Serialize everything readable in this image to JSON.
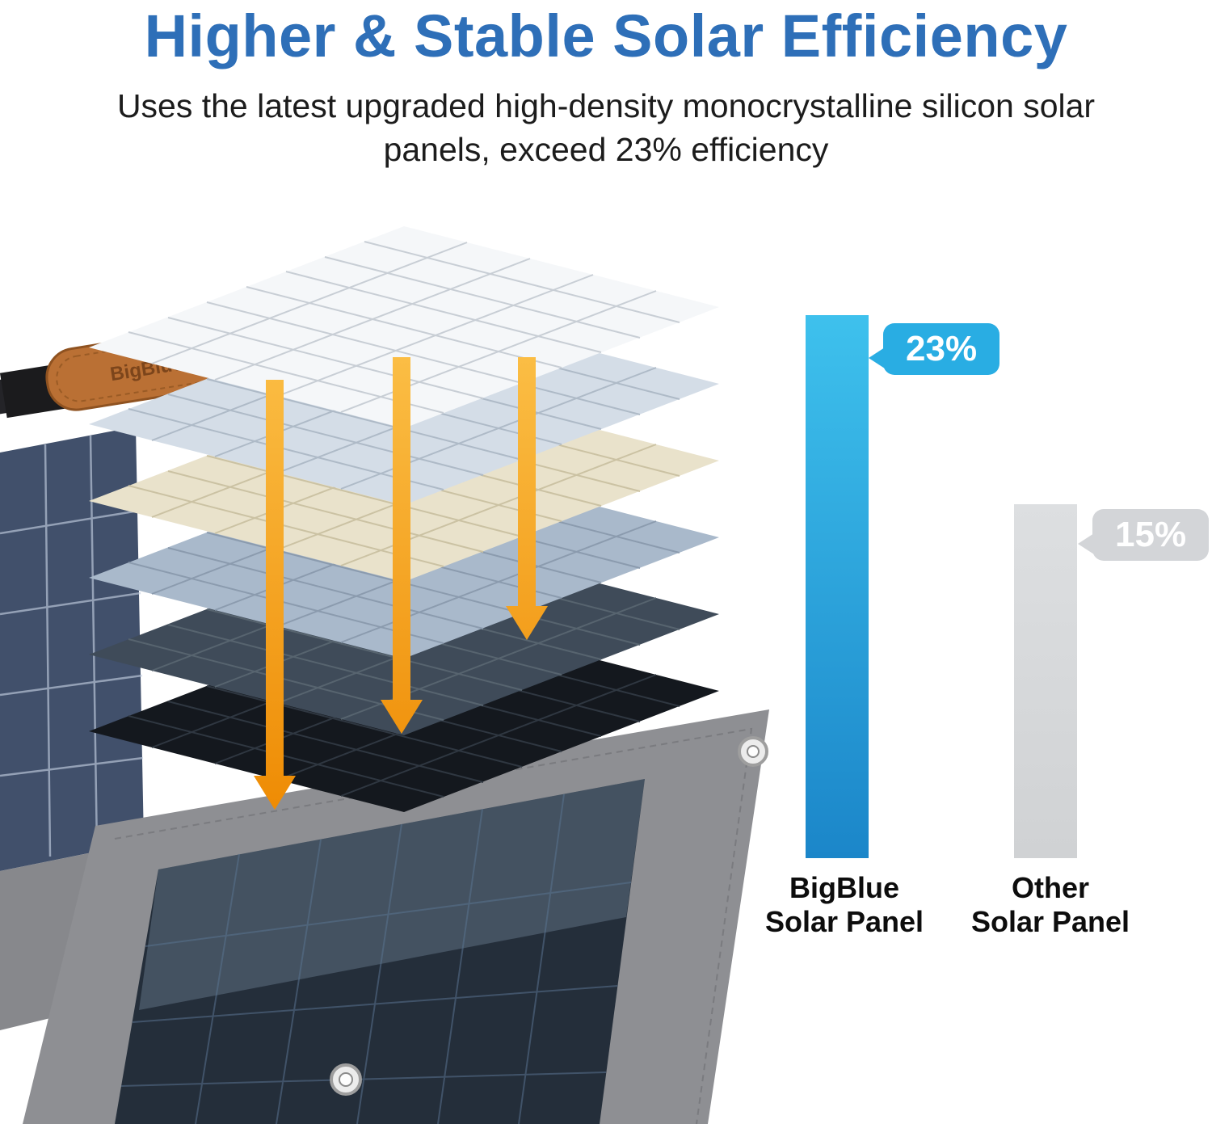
{
  "header": {
    "title": "Higher & Stable Solar Efficiency",
    "title_color": "#2E6FB8",
    "subtitle": "Uses the latest upgraded high-density monocrystalline silicon solar panels, exceed 23% efficiency"
  },
  "hero": {
    "strap_label": "BigBlue"
  },
  "chart_data": {
    "type": "bar",
    "categories": [
      "BigBlue Solar Panel",
      "Other Solar Panel"
    ],
    "category_lines": [
      [
        "BigBlue",
        "Solar Panel"
      ],
      [
        "Other",
        "Solar Panel"
      ]
    ],
    "values": [
      23,
      15
    ],
    "value_labels": [
      "23%",
      "15%"
    ],
    "unit": "%",
    "ylim": [
      0,
      25
    ],
    "grid": false,
    "legend": false,
    "bar_colors": [
      [
        "#3EC1ED",
        "#1B86C9"
      ],
      [
        "#DDDFE1",
        "#D0D2D4"
      ]
    ],
    "bubble_colors": [
      "#29ADE3",
      "#D3D5D8"
    ]
  }
}
